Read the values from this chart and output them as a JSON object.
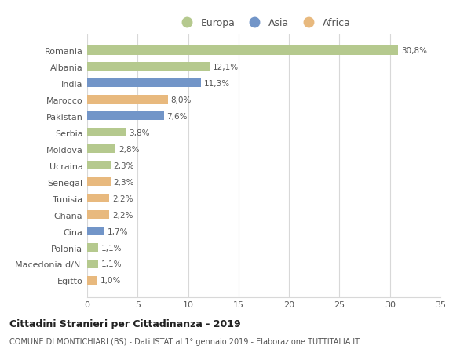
{
  "countries": [
    "Romania",
    "Albania",
    "India",
    "Marocco",
    "Pakistan",
    "Serbia",
    "Moldova",
    "Ucraina",
    "Senegal",
    "Tunisia",
    "Ghana",
    "Cina",
    "Polonia",
    "Macedonia d/N.",
    "Egitto"
  ],
  "values": [
    30.8,
    12.1,
    11.3,
    8.0,
    7.6,
    3.8,
    2.8,
    2.3,
    2.3,
    2.2,
    2.2,
    1.7,
    1.1,
    1.1,
    1.0
  ],
  "labels": [
    "30,8%",
    "12,1%",
    "11,3%",
    "8,0%",
    "7,6%",
    "3,8%",
    "2,8%",
    "2,3%",
    "2,3%",
    "2,2%",
    "2,2%",
    "1,7%",
    "1,1%",
    "1,1%",
    "1,0%"
  ],
  "continents": [
    "Europa",
    "Europa",
    "Asia",
    "Africa",
    "Asia",
    "Europa",
    "Europa",
    "Europa",
    "Africa",
    "Africa",
    "Africa",
    "Asia",
    "Europa",
    "Europa",
    "Africa"
  ],
  "colors": {
    "Europa": "#b5c98e",
    "Asia": "#7295c8",
    "Africa": "#e8b97e"
  },
  "background_color": "#ffffff",
  "grid_color": "#d8d8d8",
  "title": "Cittadini Stranieri per Cittadinanza - 2019",
  "subtitle": "COMUNE DI MONTICHIARI (BS) - Dati ISTAT al 1° gennaio 2019 - Elaborazione TUTTITALIA.IT",
  "xlim": [
    0,
    35
  ],
  "xticks": [
    0,
    5,
    10,
    15,
    20,
    25,
    30,
    35
  ],
  "legend_order": [
    "Europa",
    "Asia",
    "Africa"
  ]
}
